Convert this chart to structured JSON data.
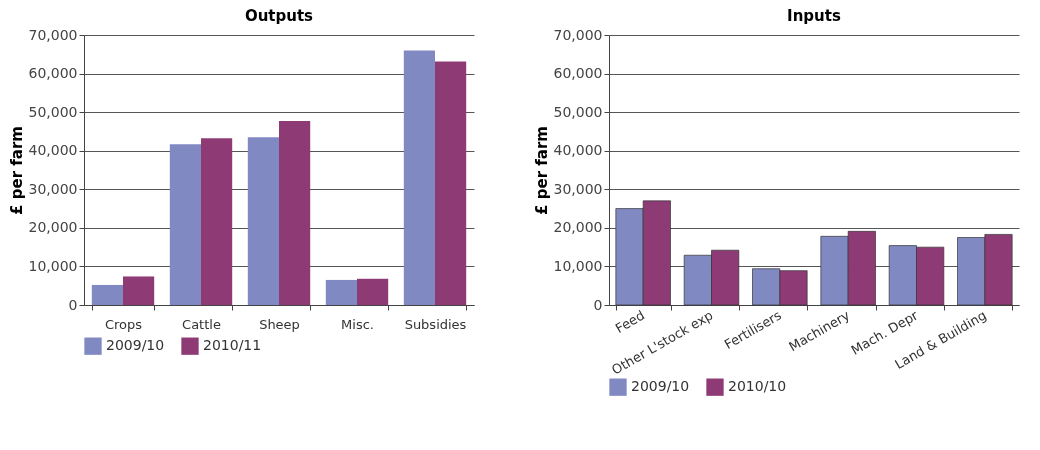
{
  "chart_data": [
    {
      "type": "bar",
      "title": "Outputs",
      "ylabel": "£ per farm",
      "categories": [
        "Crops",
        "Cattle",
        "Sheep",
        "Misc.",
        "Subsidies"
      ],
      "series": [
        {
          "name": "2009/10",
          "color": "#8089c2",
          "values": [
            5200,
            41700,
            43500,
            6500,
            66000
          ]
        },
        {
          "name": "2010/11",
          "color": "#8e3a74",
          "values": [
            7400,
            43200,
            47700,
            6800,
            63100
          ]
        }
      ],
      "ylim": [
        0,
        70000
      ],
      "yticks": [
        0,
        {
          "value": 10000,
          "label": "10,000"
        },
        {
          "value": 20000,
          "label": "20,000"
        },
        {
          "value": 30000,
          "label": "30,000"
        },
        {
          "value": 40000,
          "label": "40,000"
        },
        {
          "value": 50000,
          "label": "50,000"
        },
        {
          "value": 60000,
          "label": "60,000"
        },
        {
          "value": 70000,
          "label": "70,000"
        }
      ],
      "grid": "y",
      "legend": "bottom"
    },
    {
      "type": "bar",
      "title": "Inputs",
      "ylabel": "£ per farm",
      "categories": [
        "Feed",
        "Other L'stock exp",
        "Fertilisers",
        "Machinery",
        "Mach. Depr",
        "Land & Building"
      ],
      "series": [
        {
          "name": "2009/10",
          "color": "#8089c2",
          "values": [
            25000,
            12900,
            9400,
            17800,
            15400,
            17500
          ]
        },
        {
          "name": "2010/10",
          "color": "#8e3a74",
          "values": [
            27000,
            14200,
            8900,
            19100,
            15000,
            18300
          ]
        }
      ],
      "ylim": [
        0,
        70000
      ],
      "yticks": [
        0,
        {
          "value": 10000,
          "label": "10,000"
        },
        {
          "value": 20000,
          "label": "20,000"
        },
        {
          "value": 30000,
          "label": "30,000"
        },
        {
          "value": 40000,
          "label": "40,000"
        },
        {
          "value": 50000,
          "label": "50,000"
        },
        {
          "value": 60000,
          "label": "60,000"
        },
        {
          "value": 70000,
          "label": "70,000"
        }
      ],
      "grid": "y",
      "legend": "bottom"
    }
  ]
}
